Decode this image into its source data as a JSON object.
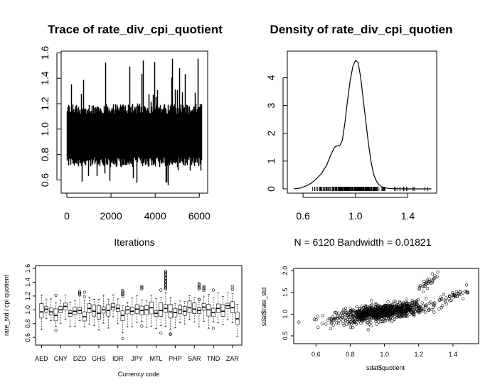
{
  "chart_data": [
    {
      "type": "line",
      "title": "Trace of rate_div_cpi_quotient",
      "xlabel": "Iterations",
      "ylabel": "",
      "xlim": [
        0,
        6120
      ],
      "ylim": [
        0.53,
        1.58
      ],
      "x_ticks": [
        "0",
        "2000",
        "4000",
        "6000"
      ],
      "y_ticks": [
        "0.6",
        "0.8",
        "1.0",
        "1.2",
        "1.4",
        "1.6"
      ],
      "n_iterations": 6120,
      "center": 0.97,
      "band": [
        0.74,
        1.16
      ],
      "range": [
        0.55,
        1.57
      ],
      "grid": false
    },
    {
      "type": "line",
      "title": "Density of rate_div_cpi_quotien",
      "xlabel": "N = 6120   Bandwidth = 0.01821",
      "ylabel": "",
      "xlim": [
        0.48,
        1.62
      ],
      "ylim": [
        0,
        4.6
      ],
      "x_ticks": [
        "0.6",
        "1.0",
        "1.4"
      ],
      "y_ticks": [
        "0",
        "1",
        "2",
        "3",
        "4"
      ],
      "x": [
        0.53,
        0.58,
        0.62,
        0.66,
        0.7,
        0.74,
        0.78,
        0.81,
        0.84,
        0.86,
        0.88,
        0.9,
        0.92,
        0.94,
        0.96,
        0.98,
        1.0,
        1.02,
        1.04,
        1.06,
        1.08,
        1.1,
        1.12,
        1.14,
        1.16,
        1.18,
        1.2,
        1.22,
        1.25,
        1.28,
        1.32,
        1.4,
        1.5,
        1.58
      ],
      "y": [
        0.0,
        0.03,
        0.1,
        0.2,
        0.35,
        0.55,
        0.85,
        1.2,
        1.5,
        1.55,
        1.55,
        1.75,
        2.4,
        3.2,
        3.9,
        4.4,
        4.62,
        4.55,
        4.0,
        3.2,
        2.4,
        1.6,
        0.95,
        0.5,
        0.28,
        0.15,
        0.08,
        0.04,
        0.02,
        0.01,
        0.005,
        0.0,
        0.0,
        0.0
      ],
      "grid": false
    },
    {
      "type": "box",
      "title": "",
      "xlabel": "Currency code",
      "ylabel": "rate_std / cpi quotient",
      "ylim": [
        0.53,
        1.6
      ],
      "x_tick_labels": [
        "AED",
        "CNY",
        "DZD",
        "GHS",
        "IDR",
        "JPY",
        "MTL",
        "PHP",
        "SAR",
        "TND",
        "ZAR"
      ],
      "y_ticks": [
        "0.6",
        "0.8",
        "1.0",
        "1.2",
        "1.4",
        "1.6"
      ],
      "n_boxes": 42,
      "medians": [
        0.97,
        1.01,
        0.97,
        0.92,
        1.0,
        1.05,
        0.95,
        0.98,
        0.99,
        0.9,
        1.02,
        0.98,
        0.95,
        1.0,
        0.99,
        1.04,
        1.02,
        0.92,
        1.0,
        0.98,
        1.01,
        0.99,
        1.0,
        1.03,
        0.95,
        0.99,
        1.02,
        0.97,
        0.96,
        1.0,
        0.98,
        1.03,
        1.01,
        0.99,
        1.04,
        1.0,
        0.96,
        1.02,
        0.98,
        1.06,
        1.03,
        0.87
      ],
      "grid": false
    },
    {
      "type": "scatter",
      "title": "",
      "xlabel": "sdat$quotient",
      "ylabel": "sdat$rate_std",
      "xlim": [
        0.47,
        1.55
      ],
      "ylim": [
        0.32,
        2.05
      ],
      "x_ticks": [
        "0.6",
        "0.8",
        "1.0",
        "1.2",
        "1.4"
      ],
      "y_ticks": [
        "0.5",
        "1.0",
        "1.5",
        "2.0"
      ],
      "relationship": "positive, approx y = x",
      "grid": false
    }
  ]
}
